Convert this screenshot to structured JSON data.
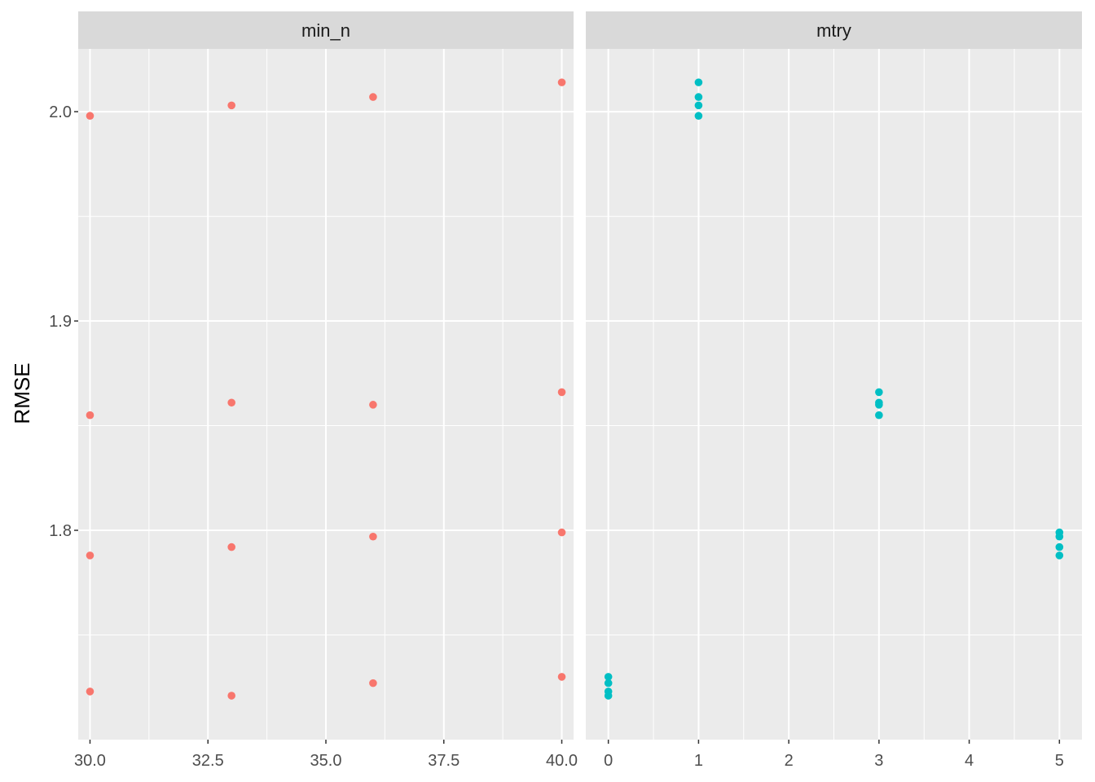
{
  "chart_data": {
    "type": "scatter",
    "layout": "facet_wrap",
    "ylabel": "RMSE",
    "ylim": [
      1.7,
      2.03
    ],
    "y_ticks": [
      1.8,
      1.9,
      2.0
    ],
    "y_tick_labels": [
      "1.8",
      "1.9",
      "2.0"
    ],
    "y_minor": [
      1.75,
      1.85,
      1.95
    ],
    "grid": true,
    "panels": [
      {
        "strip_label": "min_n",
        "color": "#F8766D",
        "xlim": [
          29.75,
          40.25
        ],
        "x_ticks": [
          30,
          32.5,
          35,
          37.5,
          40
        ],
        "x_tick_labels": [
          "30.0",
          "32.5",
          "35.0",
          "37.5",
          "40.0"
        ],
        "x_minor": [
          31.25,
          33.75,
          36.25,
          38.75
        ],
        "points": [
          {
            "x": 30,
            "y": 1.998
          },
          {
            "x": 30,
            "y": 1.855
          },
          {
            "x": 30,
            "y": 1.788
          },
          {
            "x": 30,
            "y": 1.723
          },
          {
            "x": 33,
            "y": 2.003
          },
          {
            "x": 33,
            "y": 1.861
          },
          {
            "x": 33,
            "y": 1.792
          },
          {
            "x": 33,
            "y": 1.721
          },
          {
            "x": 36,
            "y": 2.007
          },
          {
            "x": 36,
            "y": 1.86
          },
          {
            "x": 36,
            "y": 1.797
          },
          {
            "x": 36,
            "y": 1.727
          },
          {
            "x": 40,
            "y": 2.014
          },
          {
            "x": 40,
            "y": 1.866
          },
          {
            "x": 40,
            "y": 1.799
          },
          {
            "x": 40,
            "y": 1.73
          }
        ]
      },
      {
        "strip_label": "mtry",
        "color": "#00BFC4",
        "xlim": [
          -0.25,
          5.25
        ],
        "x_ticks": [
          0,
          1,
          2,
          3,
          4,
          5
        ],
        "x_tick_labels": [
          "0",
          "1",
          "2",
          "3",
          "4",
          "5"
        ],
        "x_minor": [
          0.5,
          1.5,
          2.5,
          3.5,
          4.5
        ],
        "points": [
          {
            "x": 0,
            "y": 1.73
          },
          {
            "x": 0,
            "y": 1.727
          },
          {
            "x": 0,
            "y": 1.723
          },
          {
            "x": 0,
            "y": 1.721
          },
          {
            "x": 1,
            "y": 2.014
          },
          {
            "x": 1,
            "y": 2.007
          },
          {
            "x": 1,
            "y": 2.003
          },
          {
            "x": 1,
            "y": 1.998
          },
          {
            "x": 3,
            "y": 1.866
          },
          {
            "x": 3,
            "y": 1.861
          },
          {
            "x": 3,
            "y": 1.86
          },
          {
            "x": 3,
            "y": 1.855
          },
          {
            "x": 5,
            "y": 1.799
          },
          {
            "x": 5,
            "y": 1.797
          },
          {
            "x": 5,
            "y": 1.792
          },
          {
            "x": 5,
            "y": 1.788
          }
        ]
      }
    ]
  }
}
